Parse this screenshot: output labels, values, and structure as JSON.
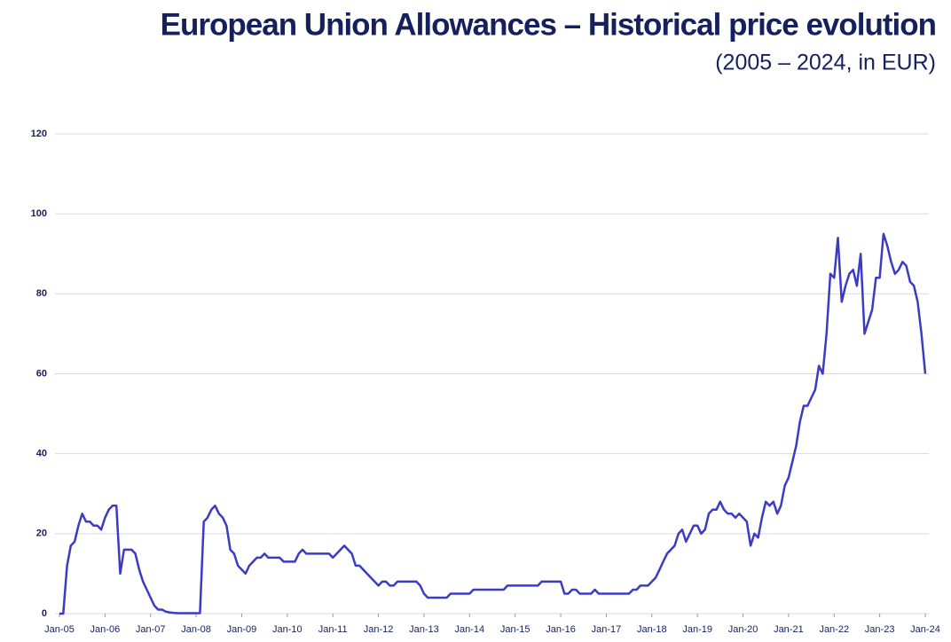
{
  "chart_data": {
    "type": "line",
    "title": "European Union Allowances – Historical price evolution",
    "subtitle": "(2005 – 2024, in EUR)",
    "x": [
      "2005-01",
      "2005-02",
      "2005-03",
      "2005-04",
      "2005-05",
      "2005-06",
      "2005-07",
      "2005-08",
      "2005-09",
      "2005-10",
      "2005-11",
      "2005-12",
      "2006-01",
      "2006-02",
      "2006-03",
      "2006-04",
      "2006-05",
      "2006-06",
      "2006-07",
      "2006-08",
      "2006-09",
      "2006-10",
      "2006-11",
      "2006-12",
      "2007-01",
      "2007-02",
      "2007-03",
      "2007-04",
      "2007-05",
      "2007-06",
      "2007-07",
      "2007-08",
      "2007-09",
      "2007-10",
      "2007-11",
      "2007-12",
      "2008-01",
      "2008-02",
      "2008-03",
      "2008-04",
      "2008-05",
      "2008-06",
      "2008-07",
      "2008-08",
      "2008-09",
      "2008-10",
      "2008-11",
      "2008-12",
      "2009-01",
      "2009-02",
      "2009-03",
      "2009-04",
      "2009-05",
      "2009-06",
      "2009-07",
      "2009-08",
      "2009-09",
      "2009-10",
      "2009-11",
      "2009-12",
      "2010-01",
      "2010-02",
      "2010-03",
      "2010-04",
      "2010-05",
      "2010-06",
      "2010-07",
      "2010-08",
      "2010-09",
      "2010-10",
      "2010-11",
      "2010-12",
      "2011-01",
      "2011-02",
      "2011-03",
      "2011-04",
      "2011-05",
      "2011-06",
      "2011-07",
      "2011-08",
      "2011-09",
      "2011-10",
      "2011-11",
      "2011-12",
      "2012-01",
      "2012-02",
      "2012-03",
      "2012-04",
      "2012-05",
      "2012-06",
      "2012-07",
      "2012-08",
      "2012-09",
      "2012-10",
      "2012-11",
      "2012-12",
      "2013-01",
      "2013-02",
      "2013-03",
      "2013-04",
      "2013-05",
      "2013-06",
      "2013-07",
      "2013-08",
      "2013-09",
      "2013-10",
      "2013-11",
      "2013-12",
      "2014-01",
      "2014-02",
      "2014-03",
      "2014-04",
      "2014-05",
      "2014-06",
      "2014-07",
      "2014-08",
      "2014-09",
      "2014-10",
      "2014-11",
      "2014-12",
      "2015-01",
      "2015-02",
      "2015-03",
      "2015-04",
      "2015-05",
      "2015-06",
      "2015-07",
      "2015-08",
      "2015-09",
      "2015-10",
      "2015-11",
      "2015-12",
      "2016-01",
      "2016-02",
      "2016-03",
      "2016-04",
      "2016-05",
      "2016-06",
      "2016-07",
      "2016-08",
      "2016-09",
      "2016-10",
      "2016-11",
      "2016-12",
      "2017-01",
      "2017-02",
      "2017-03",
      "2017-04",
      "2017-05",
      "2017-06",
      "2017-07",
      "2017-08",
      "2017-09",
      "2017-10",
      "2017-11",
      "2017-12",
      "2018-01",
      "2018-02",
      "2018-03",
      "2018-04",
      "2018-05",
      "2018-06",
      "2018-07",
      "2018-08",
      "2018-09",
      "2018-10",
      "2018-11",
      "2018-12",
      "2019-01",
      "2019-02",
      "2019-03",
      "2019-04",
      "2019-05",
      "2019-06",
      "2019-07",
      "2019-08",
      "2019-09",
      "2019-10",
      "2019-11",
      "2019-12",
      "2020-01",
      "2020-02",
      "2020-03",
      "2020-04",
      "2020-05",
      "2020-06",
      "2020-07",
      "2020-08",
      "2020-09",
      "2020-10",
      "2020-11",
      "2020-12",
      "2021-01",
      "2021-02",
      "2021-03",
      "2021-04",
      "2021-05",
      "2021-06",
      "2021-07",
      "2021-08",
      "2021-09",
      "2021-10",
      "2021-11",
      "2021-12",
      "2022-01",
      "2022-02",
      "2022-03",
      "2022-04",
      "2022-05",
      "2022-06",
      "2022-07",
      "2022-08",
      "2022-09",
      "2022-10",
      "2022-11",
      "2022-12",
      "2023-01",
      "2023-02",
      "2023-03",
      "2023-04",
      "2023-05",
      "2023-06",
      "2023-07",
      "2023-08",
      "2023-09",
      "2023-10",
      "2023-11",
      "2023-12",
      "2024-01"
    ],
    "series": [
      {
        "color": "#3b3bc4",
        "values": [
          0,
          0,
          12,
          17,
          18,
          22,
          25,
          23,
          23,
          22,
          22,
          21,
          24,
          26,
          27,
          27,
          10,
          16,
          16,
          16,
          15,
          11,
          8,
          6,
          4,
          2,
          1,
          1,
          0.5,
          0.3,
          0.2,
          0.1,
          0.1,
          0.1,
          0.1,
          0.1,
          0.1,
          0.1,
          23,
          24,
          26,
          27,
          25,
          24,
          22,
          16,
          15,
          12,
          11,
          10,
          12,
          13,
          14,
          14,
          15,
          14,
          14,
          14,
          14,
          13,
          13,
          13,
          13,
          15,
          16,
          15,
          15,
          15,
          15,
          15,
          15,
          15,
          14,
          15,
          16,
          17,
          16,
          15,
          12,
          12,
          11,
          10,
          9,
          8,
          7,
          8,
          8,
          7,
          7,
          8,
          8,
          8,
          8,
          8,
          8,
          7,
          5,
          4,
          4,
          4,
          4,
          4,
          4,
          5,
          5,
          5,
          5,
          5,
          5,
          6,
          6,
          6,
          6,
          6,
          6,
          6,
          6,
          6,
          7,
          7,
          7,
          7,
          7,
          7,
          7,
          7,
          7,
          8,
          8,
          8,
          8,
          8,
          8,
          5,
          5,
          6,
          6,
          5,
          5,
          5,
          5,
          6,
          5,
          5,
          5,
          5,
          5,
          5,
          5,
          5,
          5,
          6,
          6,
          7,
          7,
          7,
          8,
          9,
          11,
          13,
          15,
          16,
          17,
          20,
          21,
          18,
          20,
          22,
          22,
          20,
          21,
          25,
          26,
          26,
          28,
          26,
          25,
          25,
          24,
          25,
          24,
          23,
          17,
          20,
          19,
          24,
          28,
          27,
          28,
          25,
          27,
          32,
          34,
          38,
          42,
          48,
          52,
          52,
          54,
          56,
          62,
          60,
          70,
          85,
          84,
          94,
          78,
          82,
          85,
          86,
          82,
          90,
          70,
          73,
          76,
          84,
          84,
          95,
          92,
          88,
          85,
          86,
          88,
          87,
          83,
          82,
          78,
          70,
          60
        ]
      }
    ],
    "xlim": [
      "2005-01",
      "2024-01"
    ],
    "xticks": [
      {
        "value": "2005-01",
        "label": "Jan-05"
      },
      {
        "value": "2006-01",
        "label": "Jan-06"
      },
      {
        "value": "2007-01",
        "label": "Jan-07"
      },
      {
        "value": "2008-01",
        "label": "Jan-08"
      },
      {
        "value": "2009-01",
        "label": "Jan-09"
      },
      {
        "value": "2010-01",
        "label": "Jan-10"
      },
      {
        "value": "2011-01",
        "label": "Jan-11"
      },
      {
        "value": "2012-01",
        "label": "Jan-12"
      },
      {
        "value": "2013-01",
        "label": "Jan-13"
      },
      {
        "value": "2014-01",
        "label": "Jan-14"
      },
      {
        "value": "2015-01",
        "label": "Jan-15"
      },
      {
        "value": "2016-01",
        "label": "Jan-16"
      },
      {
        "value": "2017-01",
        "label": "Jan-17"
      },
      {
        "value": "2018-01",
        "label": "Jan-18"
      },
      {
        "value": "2019-01",
        "label": "Jan-19"
      },
      {
        "value": "2020-01",
        "label": "Jan-20"
      },
      {
        "value": "2021-01",
        "label": "Jan-21"
      },
      {
        "value": "2022-01",
        "label": "Jan-22"
      },
      {
        "value": "2023-01",
        "label": "Jan-23"
      },
      {
        "value": "2024-01",
        "label": "Jan-24"
      }
    ],
    "ylim": [
      0,
      120
    ],
    "yticks": [
      0,
      20,
      40,
      60,
      80,
      100,
      120
    ],
    "grid": true
  }
}
